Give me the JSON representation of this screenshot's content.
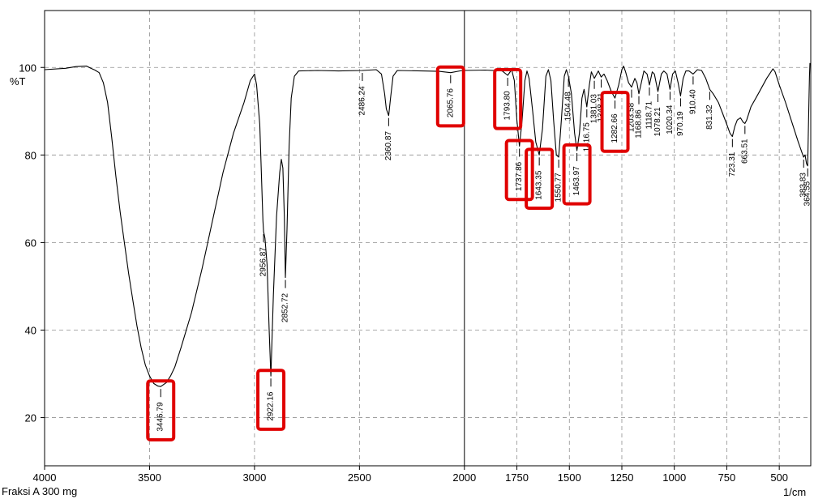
{
  "chart_data": {
    "type": "line",
    "ylabel": "%T",
    "xunit": "1/cm",
    "sample_label": "Fraksi A 300 mg",
    "xlim": [
      4000,
      350
    ],
    "ylim": [
      9,
      113
    ],
    "x_ticks": [
      4000,
      3500,
      3000,
      2500,
      2000,
      1750,
      1500,
      1250,
      1000,
      750,
      500
    ],
    "y_ticks": [
      20,
      40,
      60,
      80,
      100
    ],
    "grid": true,
    "series": [
      {
        "points": [
          [
            4000,
            99.5
          ],
          [
            3900,
            99.8
          ],
          [
            3850,
            100.2
          ],
          [
            3800,
            100.3
          ],
          [
            3780,
            99.8
          ],
          [
            3760,
            99.4
          ],
          [
            3740,
            98.8
          ],
          [
            3720,
            96.5
          ],
          [
            3700,
            92
          ],
          [
            3680,
            84
          ],
          [
            3660,
            75
          ],
          [
            3640,
            67
          ],
          [
            3620,
            60
          ],
          [
            3600,
            53
          ],
          [
            3580,
            47
          ],
          [
            3560,
            41
          ],
          [
            3540,
            36
          ],
          [
            3520,
            32
          ],
          [
            3500,
            29.5
          ],
          [
            3480,
            27.8
          ],
          [
            3460,
            27.2
          ],
          [
            3446.79,
            27.1
          ],
          [
            3420,
            28
          ],
          [
            3400,
            29.5
          ],
          [
            3380,
            31.5
          ],
          [
            3350,
            36
          ],
          [
            3300,
            44
          ],
          [
            3250,
            54
          ],
          [
            3200,
            65
          ],
          [
            3150,
            76
          ],
          [
            3100,
            85
          ],
          [
            3050,
            92
          ],
          [
            3020,
            97
          ],
          [
            3000,
            98.5
          ],
          [
            2990,
            96
          ],
          [
            2975,
            87
          ],
          [
            2960,
            65
          ],
          [
            2956.87,
            62.5
          ],
          [
            2950,
            61
          ],
          [
            2940,
            55
          ],
          [
            2930,
            40
          ],
          [
            2922.16,
            29.5
          ],
          [
            2910,
            48
          ],
          [
            2895,
            66
          ],
          [
            2880,
            76
          ],
          [
            2872,
            79
          ],
          [
            2865,
            77
          ],
          [
            2858,
            66
          ],
          [
            2852.72,
            52
          ],
          [
            2845,
            63
          ],
          [
            2835,
            82
          ],
          [
            2825,
            93
          ],
          [
            2810,
            98
          ],
          [
            2790,
            99.2
          ],
          [
            2700,
            99.3
          ],
          [
            2600,
            99.2
          ],
          [
            2486.24,
            99.3
          ],
          [
            2420,
            99.5
          ],
          [
            2395,
            98.5
          ],
          [
            2380,
            94
          ],
          [
            2372,
            90.5
          ],
          [
            2360.87,
            89
          ],
          [
            2352,
            93
          ],
          [
            2340,
            98
          ],
          [
            2320,
            99.3
          ],
          [
            2200,
            99.2
          ],
          [
            2120,
            99.1
          ],
          [
            2065.76,
            98.8
          ],
          [
            2010,
            99.3
          ],
          [
            1900,
            99.4
          ],
          [
            1820,
            99.2
          ],
          [
            1793.8,
            98.2
          ],
          [
            1775,
            99.5
          ],
          [
            1762,
            97
          ],
          [
            1750,
            88
          ],
          [
            1737.86,
            82
          ],
          [
            1725,
            88
          ],
          [
            1712,
            97
          ],
          [
            1702,
            99.2
          ],
          [
            1692,
            97.5
          ],
          [
            1675,
            90
          ],
          [
            1660,
            83
          ],
          [
            1643.35,
            80
          ],
          [
            1628,
            86
          ],
          [
            1612,
            98
          ],
          [
            1600,
            99.5
          ],
          [
            1588,
            97
          ],
          [
            1575,
            88
          ],
          [
            1562,
            80
          ],
          [
            1550.77,
            79.5
          ],
          [
            1538,
            88
          ],
          [
            1524,
            98
          ],
          [
            1514,
            99.5
          ],
          [
            1504.48,
            98
          ],
          [
            1490,
            94
          ],
          [
            1475,
            85
          ],
          [
            1463.97,
            81
          ],
          [
            1452,
            85
          ],
          [
            1440,
            93
          ],
          [
            1430,
            95
          ],
          [
            1416.75,
            91
          ],
          [
            1405,
            96
          ],
          [
            1395,
            99
          ],
          [
            1381.03,
            97.5
          ],
          [
            1370,
            98.5
          ],
          [
            1362,
            99.2
          ],
          [
            1348.31,
            97.8
          ],
          [
            1335,
            98.5
          ],
          [
            1320,
            97
          ],
          [
            1300,
            94.5
          ],
          [
            1282.66,
            93
          ],
          [
            1265,
            96
          ],
          [
            1250,
            99.5
          ],
          [
            1242,
            100.3
          ],
          [
            1232,
            99
          ],
          [
            1218,
            96.5
          ],
          [
            1203.58,
            95.5
          ],
          [
            1188,
            97.5
          ],
          [
            1178,
            96.5
          ],
          [
            1168.86,
            94
          ],
          [
            1155,
            97
          ],
          [
            1145,
            99.2
          ],
          [
            1130,
            98.5
          ],
          [
            1118.71,
            96
          ],
          [
            1105,
            99
          ],
          [
            1095,
            98.5
          ],
          [
            1078.21,
            94.5
          ],
          [
            1062,
            98.5
          ],
          [
            1050,
            99.2
          ],
          [
            1035,
            98.5
          ],
          [
            1020.34,
            95
          ],
          [
            1008,
            98.5
          ],
          [
            995,
            99.2
          ],
          [
            982,
            96.5
          ],
          [
            970.19,
            93.5
          ],
          [
            958,
            97.5
          ],
          [
            945,
            99.2
          ],
          [
            930,
            99.2
          ],
          [
            910.4,
            98.5
          ],
          [
            890,
            99.5
          ],
          [
            870,
            99.3
          ],
          [
            850,
            97.5
          ],
          [
            831.32,
            95
          ],
          [
            815,
            94
          ],
          [
            790,
            92
          ],
          [
            770,
            89.5
          ],
          [
            750,
            87
          ],
          [
            735,
            85
          ],
          [
            723.31,
            84.2
          ],
          [
            712,
            86.5
          ],
          [
            700,
            88
          ],
          [
            685,
            88.5
          ],
          [
            672,
            87.5
          ],
          [
            663.51,
            87.2
          ],
          [
            655,
            88
          ],
          [
            635,
            91
          ],
          [
            600,
            94
          ],
          [
            560,
            97.5
          ],
          [
            530,
            99.7
          ],
          [
            520,
            99
          ],
          [
            500,
            96
          ],
          [
            470,
            92
          ],
          [
            440,
            87.5
          ],
          [
            410,
            83
          ],
          [
            395,
            81
          ],
          [
            390,
            80.3
          ],
          [
            383.83,
            79.5
          ],
          [
            377,
            80
          ],
          [
            370,
            78
          ],
          [
            364.55,
            77.5
          ],
          [
            360,
            89
          ],
          [
            356,
            98
          ],
          [
            354,
            101
          ]
        ]
      }
    ],
    "peak_labels": [
      {
        "x": 3446.79,
        "text": "3446.79",
        "boxed": true
      },
      {
        "x": 2956.87,
        "text": "2956.87",
        "boxed": false
      },
      {
        "x": 2922.16,
        "text": "2922.16",
        "boxed": true
      },
      {
        "x": 2852.72,
        "text": "2852.72",
        "boxed": false
      },
      {
        "x": 2486.24,
        "text": "2486.24",
        "boxed": false
      },
      {
        "x": 2360.87,
        "text": "2360.87",
        "boxed": false
      },
      {
        "x": 2065.76,
        "text": "2065.76",
        "boxed": true
      },
      {
        "x": 1793.8,
        "text": "1793.80",
        "boxed": true
      },
      {
        "x": 1737.86,
        "text": "1737.86",
        "boxed": true
      },
      {
        "x": 1643.35,
        "text": "1643.35",
        "boxed": true
      },
      {
        "x": 1550.77,
        "text": "1550.77",
        "boxed": false
      },
      {
        "x": 1504.48,
        "text": "1504.48",
        "boxed": false
      },
      {
        "x": 1463.97,
        "text": "1463.97",
        "boxed": true
      },
      {
        "x": 1416.75,
        "text": "1416.75",
        "boxed": false
      },
      {
        "x": 1381.03,
        "text": "1381.03",
        "boxed": false
      },
      {
        "x": 1348.31,
        "text": "1348.31",
        "boxed": false
      },
      {
        "x": 1282.66,
        "text": "1282.66",
        "boxed": true
      },
      {
        "x": 1203.58,
        "text": "1203.58",
        "boxed": false
      },
      {
        "x": 1168.86,
        "text": "1168.86",
        "boxed": false
      },
      {
        "x": 1118.71,
        "text": "1118.71",
        "boxed": false
      },
      {
        "x": 1078.21,
        "text": "1078.21",
        "boxed": false
      },
      {
        "x": 1020.34,
        "text": "1020.34",
        "boxed": false
      },
      {
        "x": 970.19,
        "text": "970.19",
        "boxed": false
      },
      {
        "x": 910.4,
        "text": "910.40",
        "boxed": false
      },
      {
        "x": 831.32,
        "text": "831.32",
        "boxed": false
      },
      {
        "x": 723.31,
        "text": "723.31",
        "boxed": false
      },
      {
        "x": 663.51,
        "text": "663.51",
        "boxed": false
      },
      {
        "x": 383.83,
        "text": "383.83",
        "boxed": false
      },
      {
        "x": 364.55,
        "text": "364.55",
        "boxed": false
      }
    ],
    "colors": {
      "line": "#000000",
      "grid": "#909090",
      "highlight": "#e00000"
    }
  }
}
